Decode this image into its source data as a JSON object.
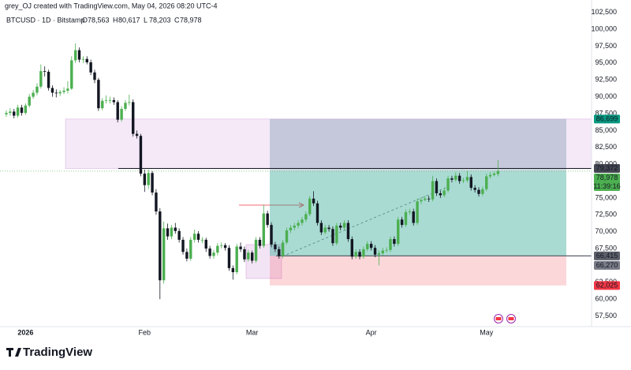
{
  "chart_data": {
    "type": "candlestick",
    "credit": "grey_OJ created with TradingView.com, May 04, 2026 08:20 UTC-4",
    "symbol": "BTCUSD · 1D · Bitstamp",
    "ohlc_keys": [
      "O",
      "H",
      "L",
      "C"
    ],
    "ohlc_labels": [
      "78,563",
      "80,617",
      "78,203",
      "78,978"
    ],
    "brand": "TradingView",
    "up_color": "#4caf50",
    "down_color": "#131722",
    "ylim": [
      56400,
      102700
    ],
    "yticks": [
      {
        "value": 57500,
        "label": "57,500"
      },
      {
        "value": 60000,
        "label": "60,000"
      },
      {
        "value": 62500,
        "label": "62,500"
      },
      {
        "value": 65000,
        "label": "65,000"
      },
      {
        "value": 67500,
        "label": "67,500"
      },
      {
        "value": 70000,
        "label": "70,000"
      },
      {
        "value": 72500,
        "label": "72,500"
      },
      {
        "value": 75000,
        "label": "75,000"
      },
      {
        "value": 77500,
        "label": "77,500"
      },
      {
        "value": 80000,
        "label": "80,000"
      },
      {
        "value": 82500,
        "label": "82,500"
      },
      {
        "value": 85000,
        "label": "85,000"
      },
      {
        "value": 87500,
        "label": "87,500"
      },
      {
        "value": 90000,
        "label": "90,000"
      },
      {
        "value": 92500,
        "label": "92,500"
      },
      {
        "value": 95000,
        "label": "95,000"
      },
      {
        "value": 97500,
        "label": "97,500"
      },
      {
        "value": 100000,
        "label": "100,000"
      },
      {
        "value": 102500,
        "label": "102,500"
      }
    ],
    "xticks": [
      {
        "value": 5,
        "label": "2026"
      },
      {
        "value": 36,
        "label": "Feb"
      },
      {
        "value": 64,
        "label": "Mar"
      },
      {
        "value": 95,
        "label": "Apr"
      },
      {
        "value": 125,
        "label": "May"
      }
    ],
    "levels": [
      {
        "value": 86699,
        "label": "86,699",
        "color": "#089981"
      },
      {
        "value": 79372,
        "label": "79,372",
        "color": "#434651"
      },
      {
        "value": 78978,
        "label": "78,978",
        "sub": "11:39:16",
        "color": "#4caf50"
      },
      {
        "value": 66415,
        "label": "66,415",
        "color": "#5d606b"
      },
      {
        "value": 66270,
        "label": "66,270",
        "color": "#787b86"
      },
      {
        "value": 62025,
        "label": "62,025",
        "color": "#f23645"
      }
    ],
    "candles": [
      [
        87400,
        88000,
        87000,
        87600
      ],
      [
        87600,
        88300,
        87200,
        87800
      ],
      [
        87800,
        88200,
        86800,
        87200
      ],
      [
        87200,
        88800,
        86900,
        88400
      ],
      [
        88400,
        88800,
        87200,
        87600
      ],
      [
        87600,
        89000,
        87300,
        88700
      ],
      [
        88700,
        90400,
        88400,
        90000
      ],
      [
        90000,
        91000,
        89700,
        90600
      ],
      [
        90600,
        92000,
        90200,
        91500
      ],
      [
        91500,
        94800,
        91200,
        93800
      ],
      [
        93800,
        94500,
        93000,
        93700
      ],
      [
        93700,
        94000,
        90900,
        91300
      ],
      [
        91300,
        91700,
        90000,
        90600
      ],
      [
        90600,
        91100,
        89900,
        90500
      ],
      [
        90500,
        91000,
        90100,
        90700
      ],
      [
        90700,
        91400,
        90400,
        90900
      ],
      [
        90900,
        92300,
        90500,
        91200
      ],
      [
        91200,
        96000,
        91000,
        95400
      ],
      [
        95400,
        97900,
        95000,
        96900
      ],
      [
        96900,
        97300,
        95100,
        95500
      ],
      [
        95500,
        96000,
        95000,
        95600
      ],
      [
        95600,
        96000,
        94800,
        95100
      ],
      [
        95100,
        95500,
        93200,
        93600
      ],
      [
        93600,
        94000,
        92000,
        92500
      ],
      [
        92500,
        92800,
        87900,
        88300
      ],
      [
        88300,
        89800,
        88000,
        89400
      ],
      [
        89400,
        90200,
        89000,
        89500
      ],
      [
        89500,
        90000,
        89000,
        89500
      ],
      [
        89500,
        89900,
        88800,
        89200
      ],
      [
        89200,
        89500,
        86200,
        86600
      ],
      [
        86600,
        88600,
        86300,
        88200
      ],
      [
        88200,
        89500,
        87900,
        89100
      ],
      [
        89100,
        90300,
        88700,
        89200
      ],
      [
        89200,
        89600,
        84100,
        84500
      ],
      [
        84500,
        85000,
        83800,
        84200
      ],
      [
        84200,
        84500,
        78200,
        78600
      ],
      [
        78600,
        79200,
        75900,
        76900
      ],
      [
        76900,
        79200,
        76300,
        78700
      ],
      [
        78700,
        79000,
        75400,
        75800
      ],
      [
        75800,
        76300,
        72500,
        73000
      ],
      [
        73000,
        73500,
        60000,
        62800
      ],
      [
        62800,
        71500,
        62300,
        70500
      ],
      [
        70500,
        71200,
        68800,
        69300
      ],
      [
        69300,
        71000,
        68900,
        70600
      ],
      [
        70600,
        71300,
        69700,
        70100
      ],
      [
        70100,
        70500,
        68400,
        68800
      ],
      [
        68800,
        69200,
        66600,
        67000
      ],
      [
        67000,
        67500,
        65600,
        66000
      ],
      [
        66000,
        69200,
        65700,
        68800
      ],
      [
        68800,
        70300,
        68400,
        69700
      ],
      [
        69700,
        70100,
        68400,
        68800
      ],
      [
        68800,
        69200,
        68300,
        68800
      ],
      [
        68800,
        69100,
        67000,
        67500
      ],
      [
        67500,
        67900,
        66000,
        66400
      ],
      [
        66400,
        67300,
        66000,
        66900
      ],
      [
        66900,
        68300,
        66500,
        67900
      ],
      [
        67900,
        68400,
        67500,
        68000
      ],
      [
        68000,
        68300,
        67200,
        67600
      ],
      [
        67600,
        68000,
        64200,
        64600
      ],
      [
        64600,
        65000,
        62900,
        64000
      ],
      [
        64000,
        68200,
        63700,
        67800
      ],
      [
        67800,
        68400,
        67000,
        67400
      ],
      [
        67400,
        67800,
        65500,
        65900
      ],
      [
        65900,
        67300,
        65600,
        66900
      ],
      [
        66900,
        67200,
        65300,
        65700
      ],
      [
        65700,
        69200,
        65400,
        68800
      ],
      [
        68800,
        69200,
        67500,
        67900
      ],
      [
        67900,
        74000,
        67600,
        72700
      ],
      [
        72700,
        73100,
        70600,
        71000
      ],
      [
        71000,
        71400,
        67700,
        68100
      ],
      [
        68100,
        68500,
        67000,
        67400
      ],
      [
        67400,
        67800,
        66000,
        66400
      ],
      [
        66400,
        68800,
        66100,
        68400
      ],
      [
        68400,
        70600,
        68100,
        70200
      ],
      [
        70200,
        71000,
        69800,
        70600
      ],
      [
        70600,
        71300,
        70200,
        70900
      ],
      [
        70900,
        71700,
        70500,
        71300
      ],
      [
        71300,
        72200,
        70900,
        71800
      ],
      [
        71800,
        73000,
        71400,
        72600
      ],
      [
        72600,
        75300,
        72300,
        74900
      ],
      [
        74900,
        76000,
        73800,
        74200
      ],
      [
        74200,
        74600,
        70900,
        71300
      ],
      [
        71300,
        71700,
        69500,
        69900
      ],
      [
        69900,
        71000,
        69600,
        70600
      ],
      [
        70600,
        71000,
        70000,
        70400
      ],
      [
        70400,
        70800,
        67900,
        68300
      ],
      [
        68300,
        71300,
        68000,
        70900
      ],
      [
        70900,
        71300,
        70200,
        70600
      ],
      [
        70600,
        71700,
        70200,
        71300
      ],
      [
        71300,
        71700,
        68500,
        68900
      ],
      [
        68900,
        69300,
        65900,
        66300
      ],
      [
        66300,
        67400,
        66000,
        67000
      ],
      [
        67000,
        67400,
        65900,
        66300
      ],
      [
        66300,
        67800,
        66000,
        67400
      ],
      [
        67400,
        68600,
        67100,
        68200
      ],
      [
        68200,
        68600,
        67200,
        67600
      ],
      [
        67600,
        68000,
        66200,
        66600
      ],
      [
        66600,
        67200,
        65000,
        66800
      ],
      [
        66800,
        67600,
        66400,
        67200
      ],
      [
        67200,
        67700,
        66900,
        67300
      ],
      [
        67300,
        69300,
        67000,
        68900
      ],
      [
        68900,
        69300,
        67800,
        68200
      ],
      [
        68200,
        72200,
        67900,
        71800
      ],
      [
        71800,
        72200,
        70600,
        71000
      ],
      [
        71000,
        73300,
        70700,
        72900
      ],
      [
        72900,
        73400,
        72500,
        73000
      ],
      [
        73000,
        73400,
        70900,
        71300
      ],
      [
        71300,
        74900,
        71000,
        74500
      ],
      [
        74500,
        75100,
        74100,
        74700
      ],
      [
        74700,
        75300,
        74500,
        74900
      ],
      [
        74900,
        75300,
        74400,
        74800
      ],
      [
        74800,
        78300,
        74500,
        77500
      ],
      [
        77500,
        77900,
        75300,
        75700
      ],
      [
        75700,
        76100,
        75000,
        75400
      ],
      [
        75400,
        76500,
        75100,
        76100
      ],
      [
        76100,
        78300,
        75800,
        77900
      ],
      [
        77900,
        78300,
        77300,
        77700
      ],
      [
        77700,
        78800,
        77400,
        78300
      ],
      [
        78300,
        78700,
        77100,
        77500
      ],
      [
        77500,
        78000,
        77200,
        77600
      ],
      [
        77600,
        79000,
        77300,
        78100
      ],
      [
        78100,
        78500,
        76100,
        76500
      ],
      [
        76500,
        76900,
        75800,
        76200
      ],
      [
        76200,
        76600,
        75200,
        75600
      ],
      [
        75600,
        76700,
        75300,
        76300
      ],
      [
        76300,
        78600,
        76000,
        78200
      ],
      [
        78200,
        78800,
        77900,
        78400
      ],
      [
        78400,
        78900,
        78200,
        78600
      ],
      [
        78563,
        80617,
        78203,
        78978
      ]
    ]
  }
}
